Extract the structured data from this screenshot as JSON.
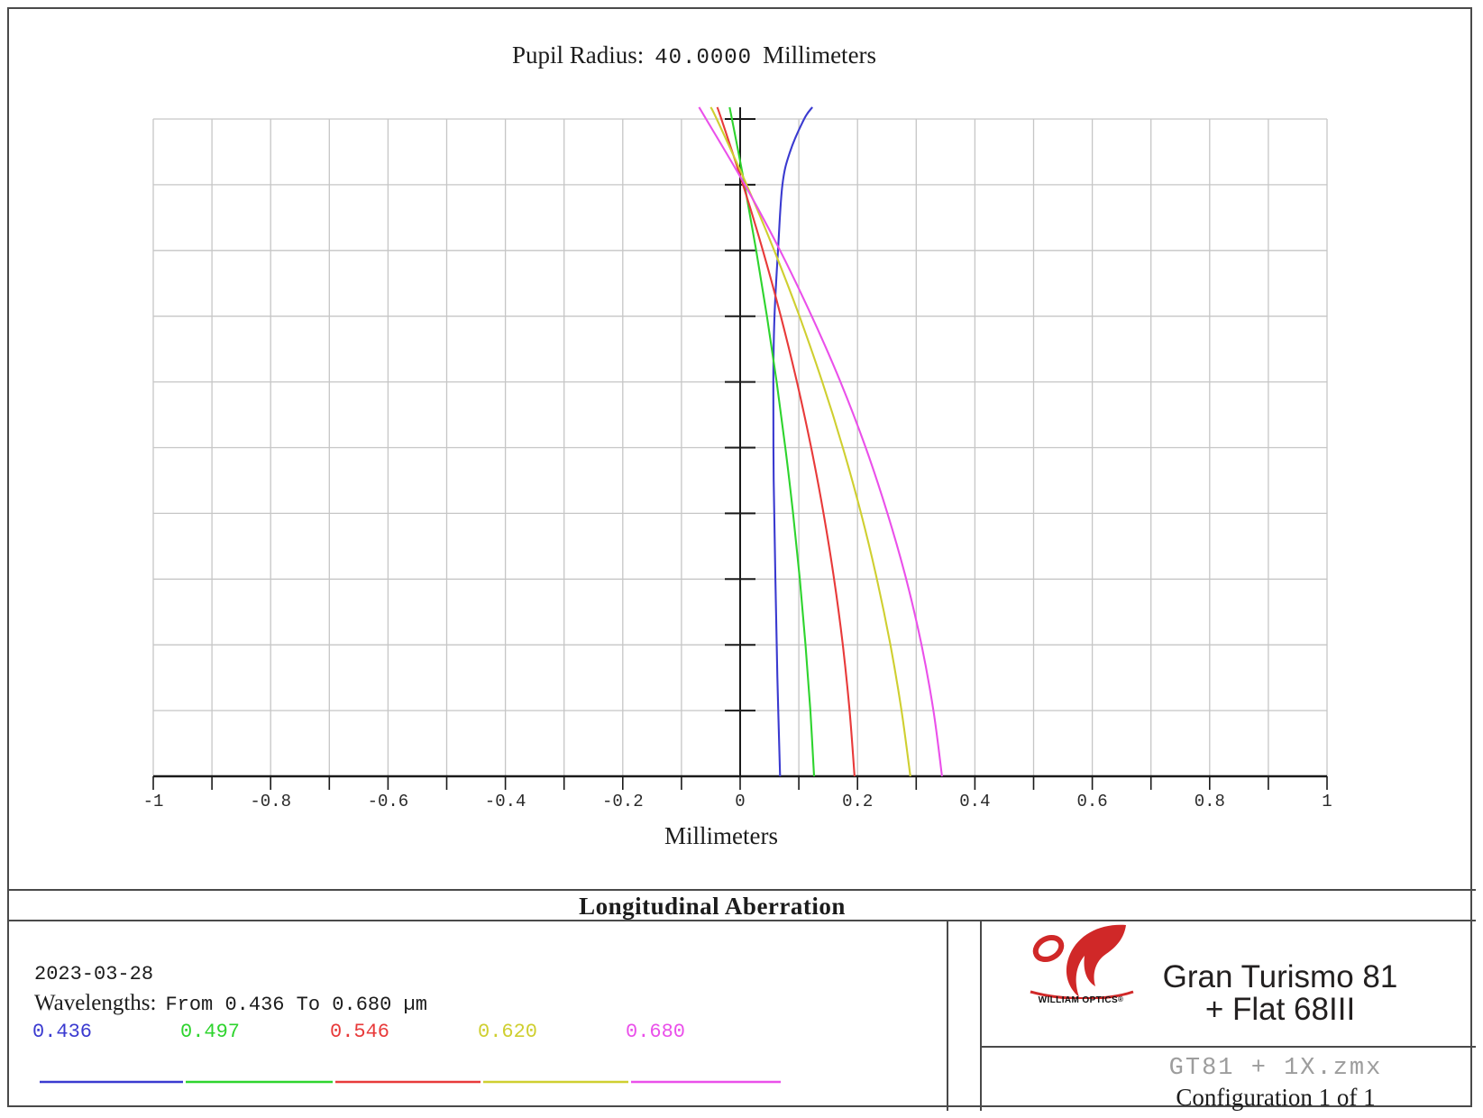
{
  "header": {
    "label": "Pupil Radius:",
    "value": "40.0000",
    "unit": "Millimeters"
  },
  "caption": "Longitudinal Aberration",
  "footer": {
    "date": "2023-03-28",
    "wavelengths_label": "Wavelengths:",
    "wavelengths_value": "From 0.436 To 0.680 µm",
    "file_name": "GT81 + 1X.zmx",
    "configuration": "Configuration 1 of 1"
  },
  "brand": {
    "logo_name": "WILLIAM OPTICS",
    "reg_mark": "®",
    "product_line1": "Gran Turismo 81",
    "product_line2": "+ Flat 68III",
    "logo_color": "#d02828"
  },
  "chart_data": {
    "type": "line",
    "title": "Pupil Radius: 40.0000 Millimeters",
    "xlabel": "Millimeters",
    "ylabel": "",
    "x_range": [
      -1,
      1
    ],
    "y_range": [
      0,
      1
    ],
    "y_axis_meaning": "normalized entrance pupil height (unlabeled in plot)",
    "grid": true,
    "grid_step_x": 0.1,
    "grid_rows_y": 10,
    "x_tick_labels": [
      "-1",
      "-0.8",
      "-0.6",
      "-0.4",
      "-0.2",
      "0",
      "0.2",
      "0.4",
      "0.6",
      "0.8",
      "1"
    ],
    "legend_position": "bottom-left",
    "series": [
      {
        "name": "0.436",
        "color": "#3a3ad0",
        "points": [
          [
            0,
            0.068
          ],
          [
            0.15,
            0.0635
          ],
          [
            0.3,
            0.06
          ],
          [
            0.45,
            0.0572
          ],
          [
            0.6,
            0.0565
          ],
          [
            0.7,
            0.0585
          ],
          [
            0.8,
            0.0645
          ],
          [
            0.9,
            0.072
          ],
          [
            0.95,
            0.085
          ],
          [
            1.0,
            0.109
          ],
          [
            1.018,
            0.123
          ]
        ]
      },
      {
        "name": "0.497",
        "color": "#2ed42e",
        "points": [
          [
            0,
            0.126
          ],
          [
            0.1,
            0.1196
          ],
          [
            0.2,
            0.1114
          ],
          [
            0.3,
            0.1017
          ],
          [
            0.4,
            0.0902
          ],
          [
            0.5,
            0.077
          ],
          [
            0.6,
            0.0622
          ],
          [
            0.7,
            0.0456
          ],
          [
            0.8,
            0.0274
          ],
          [
            0.9,
            0.0076
          ],
          [
            1.0,
            -0.014
          ],
          [
            1.018,
            -0.018
          ]
        ]
      },
      {
        "name": "0.546",
        "color": "#e83a3a",
        "points": [
          [
            0,
            0.195
          ],
          [
            0.1,
            0.1865
          ],
          [
            0.2,
            0.1749
          ],
          [
            0.3,
            0.1601
          ],
          [
            0.4,
            0.1421
          ],
          [
            0.5,
            0.121
          ],
          [
            0.6,
            0.0967
          ],
          [
            0.7,
            0.0693
          ],
          [
            0.8,
            0.0387
          ],
          [
            0.9,
            0.0049
          ],
          [
            1.0,
            -0.032
          ],
          [
            1.018,
            -0.039
          ]
        ]
      },
      {
        "name": "0.620",
        "color": "#cfcf30",
        "points": [
          [
            0,
            0.29
          ],
          [
            0.1,
            0.275
          ],
          [
            0.2,
            0.256
          ],
          [
            0.3,
            0.233
          ],
          [
            0.4,
            0.206
          ],
          [
            0.5,
            0.175
          ],
          [
            0.6,
            0.14
          ],
          [
            0.7,
            0.101
          ],
          [
            0.8,
            0.058
          ],
          [
            0.9,
            0.011
          ],
          [
            1.0,
            -0.04
          ],
          [
            1.018,
            -0.05
          ]
        ]
      },
      {
        "name": "0.680",
        "color": "#ea50ea",
        "points": [
          [
            0,
            0.344
          ],
          [
            0.1,
            0.3294
          ],
          [
            0.2,
            0.309
          ],
          [
            0.3,
            0.283
          ],
          [
            0.4,
            0.251
          ],
          [
            0.5,
            0.214
          ],
          [
            0.6,
            0.171
          ],
          [
            0.7,
            0.122
          ],
          [
            0.8,
            0.068
          ],
          [
            0.9,
            0.008
          ],
          [
            1.0,
            -0.058
          ],
          [
            1.018,
            -0.07
          ]
        ]
      }
    ]
  }
}
